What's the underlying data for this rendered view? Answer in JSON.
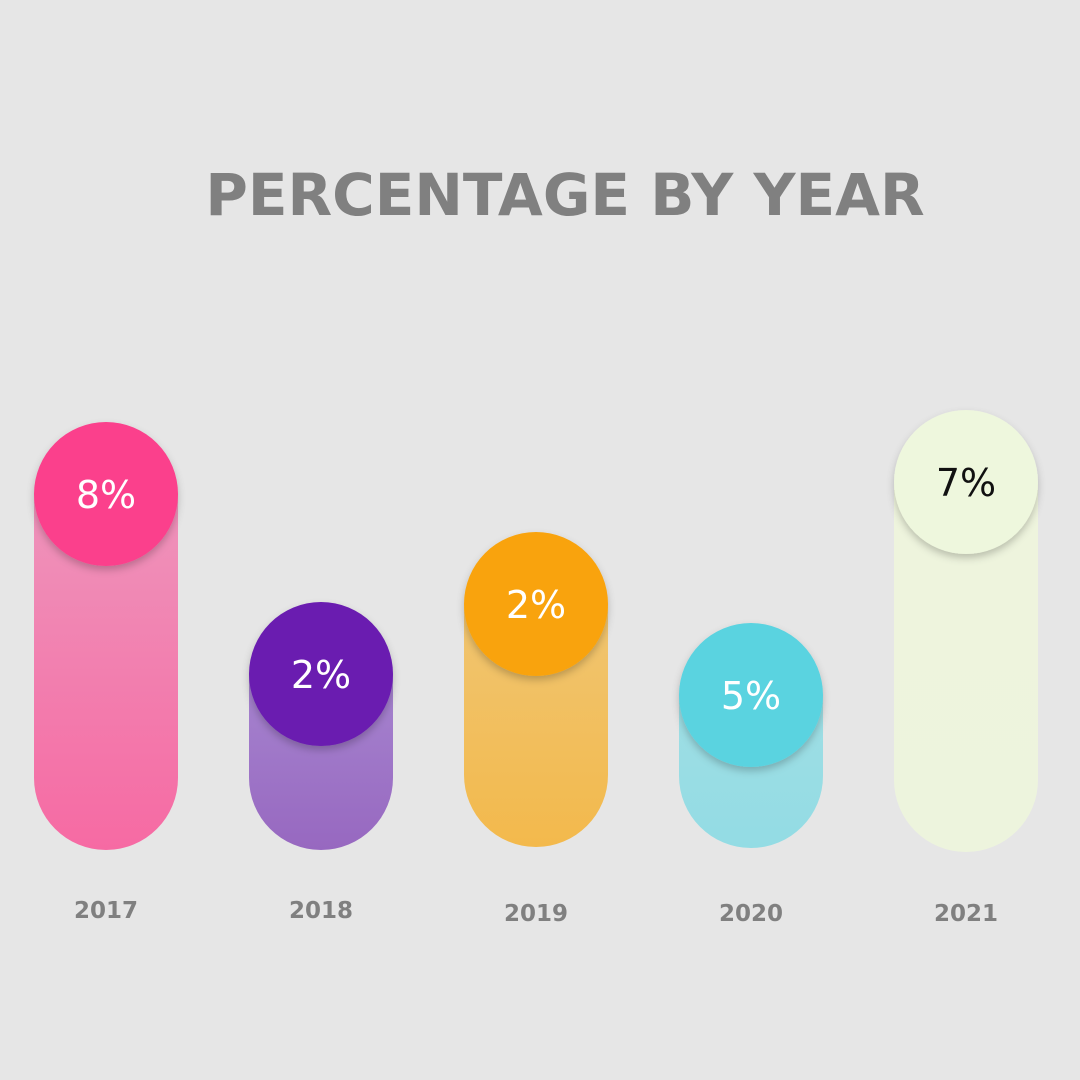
{
  "chart_data": {
    "type": "bar",
    "title": "PERCENTAGE BY YEAR",
    "categories": [
      "2017",
      "2018",
      "2019",
      "2020",
      "2021"
    ],
    "values": [
      8,
      2,
      2,
      5,
      7
    ],
    "value_labels": [
      "8%",
      "2%",
      "2%",
      "5%",
      "7%"
    ],
    "unit": "%",
    "legend": "none",
    "grid": false,
    "colors": {
      "circles": [
        "#fb3f8c",
        "#6a1cb0",
        "#f9a30a",
        "#5ad3e0",
        "#eef7dd"
      ],
      "bars_top": [
        "#ee94bb",
        "#a684cf",
        "#f0c571",
        "#9fdee4",
        "#eef4dd"
      ],
      "bars_bottom": [
        "#f66aa3",
        "#9768c0",
        "#f3b94c",
        "#93dce4",
        "#edf4dd"
      ],
      "value_text": [
        "#ffffff",
        "#ffffff",
        "#ffffff",
        "#ffffff",
        "#111111"
      ],
      "title": "#808080",
      "year_text": "#808080",
      "background": "#e6e6e6"
    }
  }
}
